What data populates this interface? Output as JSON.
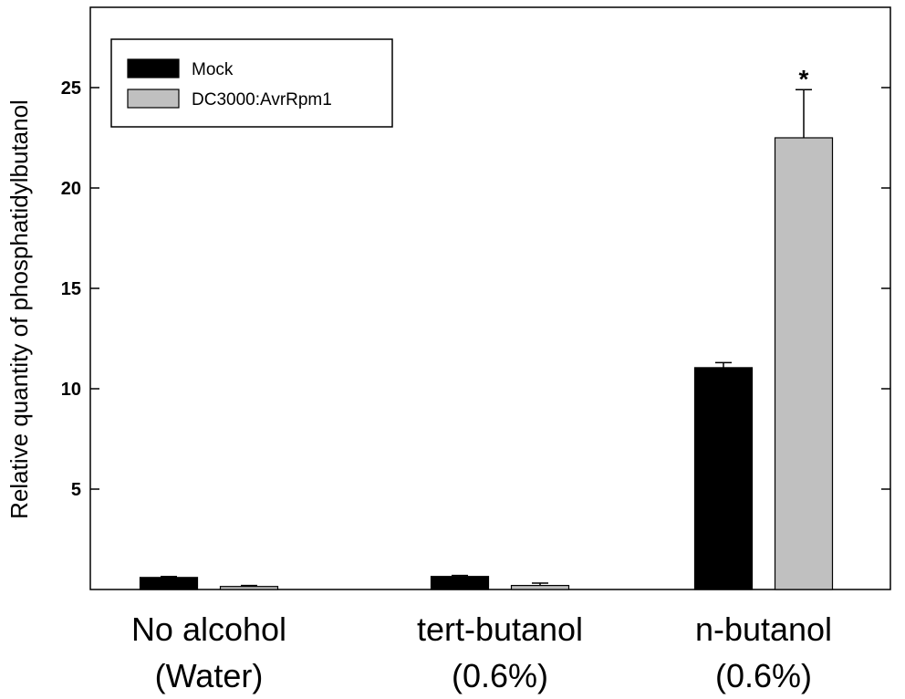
{
  "chart_data": {
    "type": "bar",
    "title": "",
    "xlabel": "",
    "ylabel": "Relative quantity of phosphatidylbutanol",
    "ylim": [
      0,
      29
    ],
    "yticks": [
      5,
      10,
      15,
      20,
      25
    ],
    "grid": false,
    "legend_position": "top-left",
    "categories": [
      {
        "line1": "No alcohol",
        "line2": "(Water)"
      },
      {
        "line1": "tert-butanol",
        "line2": "(0.6%)"
      },
      {
        "line1": "n-butanol",
        "line2": "(0.6%)"
      }
    ],
    "series": [
      {
        "name": "Mock",
        "color": "#000000",
        "values": [
          0.6,
          0.65,
          11.05
        ],
        "errors": [
          0.05,
          0.05,
          0.25
        ]
      },
      {
        "name": "DC3000:AvrRpm1",
        "color": "#c0c0c0",
        "values": [
          0.15,
          0.2,
          22.5
        ],
        "errors": [
          0.05,
          0.12,
          2.4
        ]
      }
    ],
    "annotations": [
      {
        "text": "*",
        "category_index": 2,
        "series_index": 1
      }
    ]
  }
}
